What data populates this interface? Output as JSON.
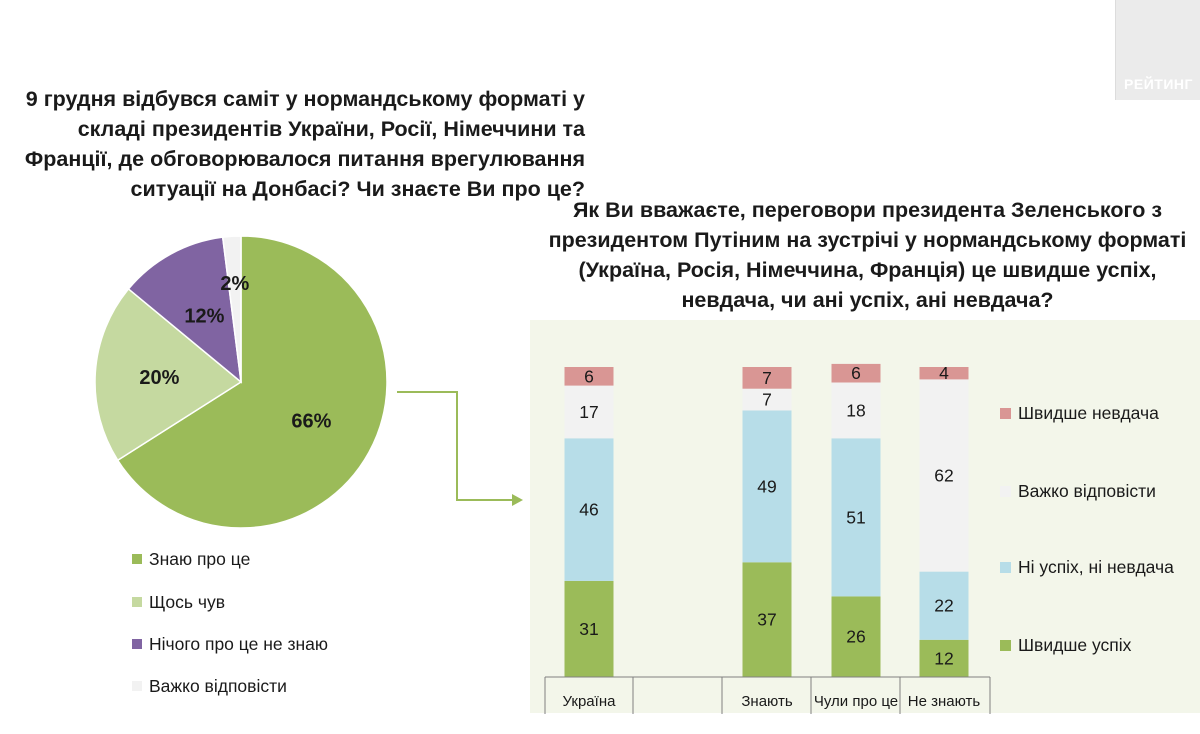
{
  "brand": {
    "logo_text": "РЕЙТИНГ"
  },
  "chart_data": [
    {
      "type": "pie",
      "title": "9 грудня відбувся саміт у нормандському форматі у складі президентів України, Росії, Німеччини та Франції, де обговорювалося питання врегулювання ситуації на Донбасі? Чи знаєте Ви про це?",
      "categories": [
        "Знаю про це",
        "Щось чув",
        "Нічого про це не знаю",
        "Важко відповісти"
      ],
      "values": [
        66,
        20,
        12,
        2
      ],
      "data_labels": [
        "66%",
        "20%",
        "12%",
        "2%"
      ],
      "colors": [
        "#9bbb59",
        "#c5d9a0",
        "#8064a2",
        "#f2f2f2"
      ],
      "legend_position": "bottom-left"
    },
    {
      "type": "bar",
      "stacked": true,
      "title": "Як Ви вважаєте, переговори президента Зеленського з президентом Путіним на зустрічі у нормандському форматі (Україна, Росія, Німеччина, Франція) це швидше успіх, невдача, чи ані успіх, ані невдача?",
      "categories": [
        "Україна",
        "Знають",
        "Чули про це",
        "Не знають"
      ],
      "series": [
        {
          "name": "Швидше успіх",
          "values": [
            31,
            37,
            26,
            12
          ],
          "color": "#9bbb59"
        },
        {
          "name": "Ні успіх, ні невдача",
          "values": [
            46,
            49,
            51,
            22
          ],
          "color": "#b7dde8"
        },
        {
          "name": "Важко відповісти",
          "values": [
            17,
            7,
            18,
            62
          ],
          "color": "#f2f2f2"
        },
        {
          "name": "Швидше невдача",
          "values": [
            6,
            7,
            6,
            4
          ],
          "color": "#d99694"
        }
      ],
      "legend_order": [
        "Швидше невдача",
        "Важко відповісти",
        "Ні успіх, ні невдача",
        "Швидше успіх"
      ],
      "ylim": [
        0,
        100
      ],
      "legend_position": "right"
    }
  ]
}
